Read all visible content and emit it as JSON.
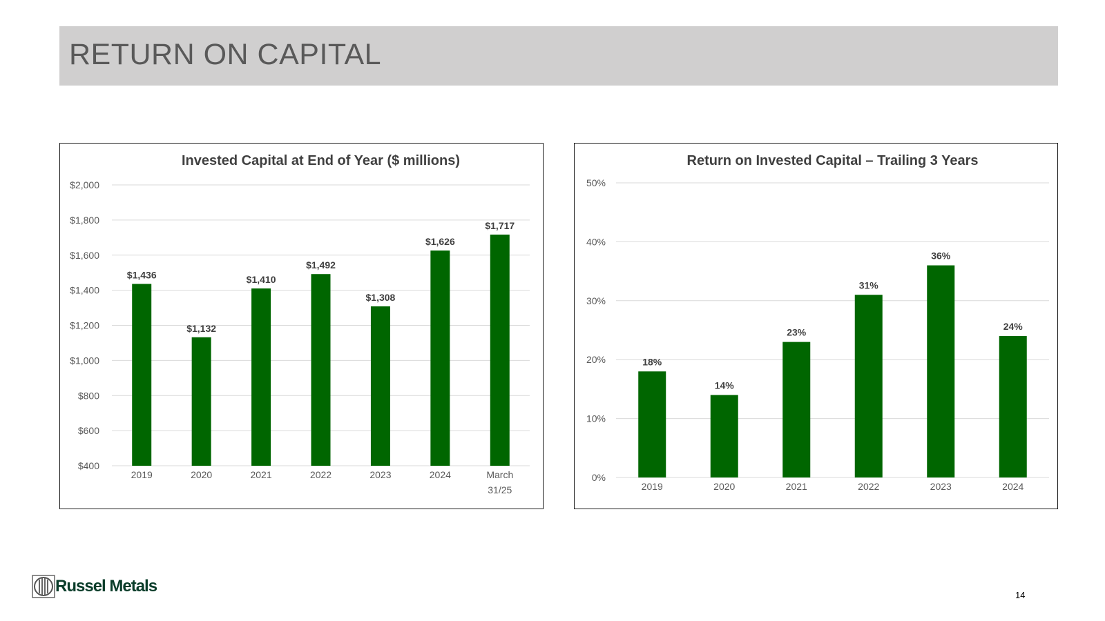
{
  "slide": {
    "title": "RETURN ON CAPITAL",
    "page_number": "14",
    "logo_text": "Russel Metals"
  },
  "colors": {
    "bar": "#006600",
    "grid": "#d9d9d9",
    "axis_text": "#595959",
    "title_text": "#404040",
    "brand": "#0a3d2a"
  },
  "chart_data": [
    {
      "type": "bar",
      "title": "Invested Capital at End of Year ($ millions)",
      "categories": [
        "2019",
        "2020",
        "2021",
        "2022",
        "2023",
        "2024",
        "March 31/25"
      ],
      "category_lines": [
        [
          "2019"
        ],
        [
          "2020"
        ],
        [
          "2021"
        ],
        [
          "2022"
        ],
        [
          "2023"
        ],
        [
          "2024"
        ],
        [
          "March",
          "31/25"
        ]
      ],
      "values": [
        1436,
        1132,
        1410,
        1492,
        1308,
        1626,
        1717
      ],
      "data_labels": [
        "$1,436",
        "$1,132",
        "$1,410",
        "$1,492",
        "$1,308",
        "$1,626",
        "$1,717"
      ],
      "ylim": [
        400,
        2000
      ],
      "yticks": [
        400,
        600,
        800,
        1000,
        1200,
        1400,
        1600,
        1800,
        2000
      ],
      "ytick_labels": [
        "$400",
        "$600",
        "$800",
        "$1,000",
        "$1,200",
        "$1,400",
        "$1,600",
        "$1,800",
        "$2,000"
      ],
      "grid": true,
      "xlabel": "",
      "ylabel": ""
    },
    {
      "type": "bar",
      "title": "Return on Invested Capital – Trailing 3 Years",
      "categories": [
        "2019",
        "2020",
        "2021",
        "2022",
        "2023",
        "2024"
      ],
      "category_lines": [
        [
          "2019"
        ],
        [
          "2020"
        ],
        [
          "2021"
        ],
        [
          "2022"
        ],
        [
          "2023"
        ],
        [
          "2024"
        ]
      ],
      "values": [
        18,
        14,
        23,
        31,
        36,
        24
      ],
      "data_labels": [
        "18%",
        "14%",
        "23%",
        "31%",
        "36%",
        "24%"
      ],
      "ylim": [
        0,
        50
      ],
      "yticks": [
        0,
        10,
        20,
        30,
        40,
        50
      ],
      "ytick_labels": [
        "0%",
        "10%",
        "20%",
        "30%",
        "40%",
        "50%"
      ],
      "grid": true,
      "xlabel": "",
      "ylabel": ""
    }
  ]
}
